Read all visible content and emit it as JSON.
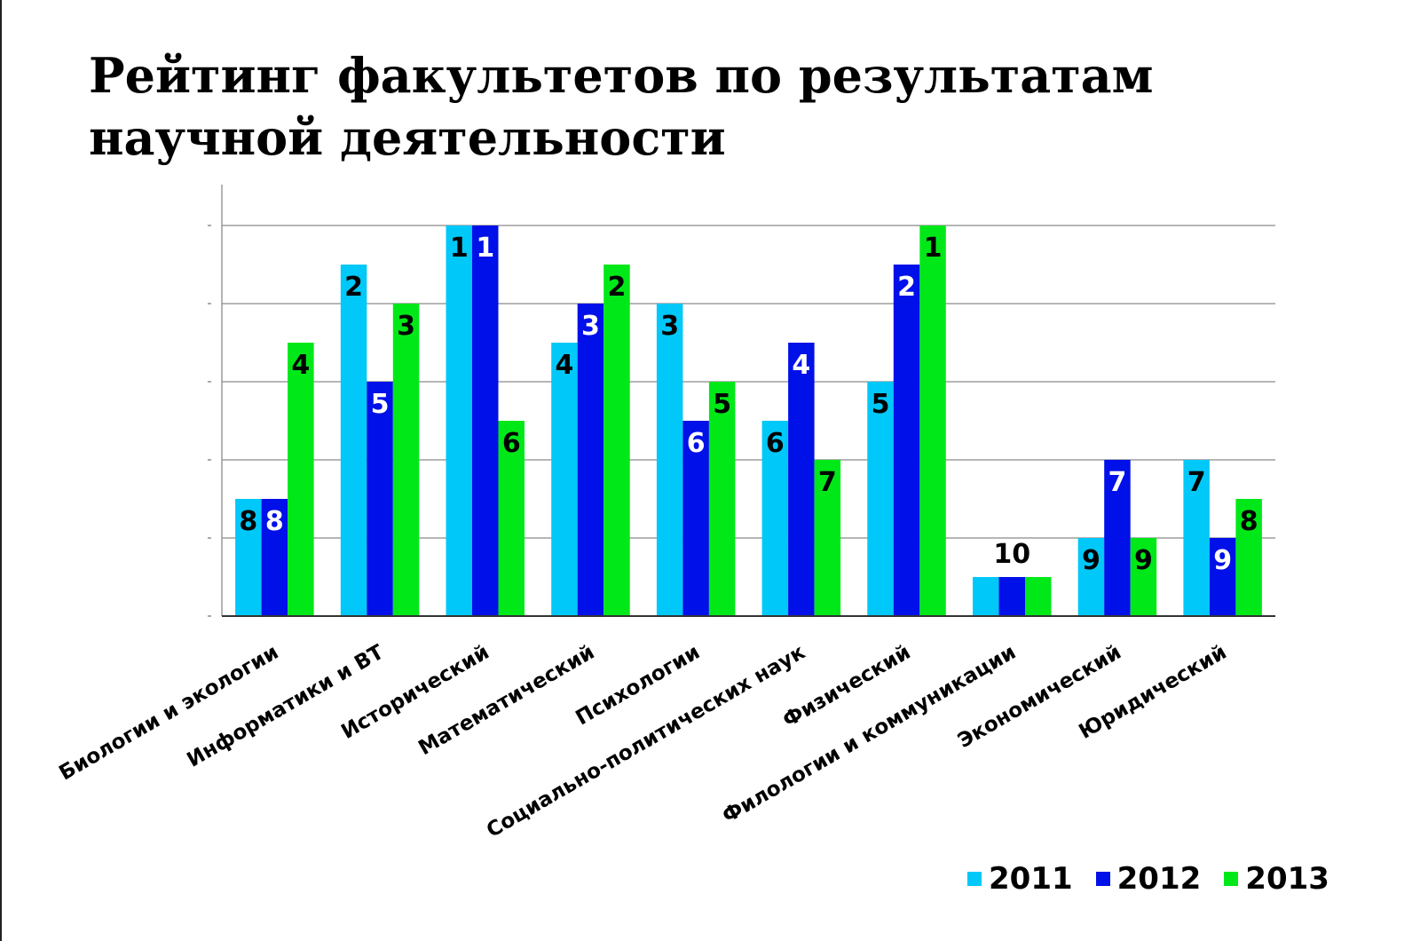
{
  "title_lines": [
    "Рейтинг факультетов по результатам",
    "научной деятельности"
  ],
  "colors": {
    "s2011": "#00C8F8",
    "s2012": "#0010E8",
    "s2013": "#00E818"
  },
  "chart_data": {
    "type": "bar",
    "title": "Рейтинг факультетов по результатам научной деятельности",
    "categories": [
      "Биологии и экологии",
      "Информатики и ВТ",
      "Исторический",
      "Математический",
      "Психологии",
      "Социально-политических  наук",
      "Физический",
      "Филологии и коммуникации",
      "Экономический",
      "Юридический"
    ],
    "series": [
      {
        "name": "2011",
        "values": [
          8,
          2,
          1,
          4,
          3,
          6,
          5,
          10,
          9,
          7
        ]
      },
      {
        "name": "2012",
        "values": [
          8,
          5,
          1,
          3,
          6,
          4,
          2,
          10,
          7,
          9
        ]
      },
      {
        "name": "2013",
        "values": [
          4,
          3,
          6,
          2,
          5,
          7,
          1,
          10,
          9,
          8
        ]
      }
    ],
    "value_meaning": "rank (1 = best, tallest bar)",
    "grid": true,
    "legend_position": "bottom-right"
  }
}
